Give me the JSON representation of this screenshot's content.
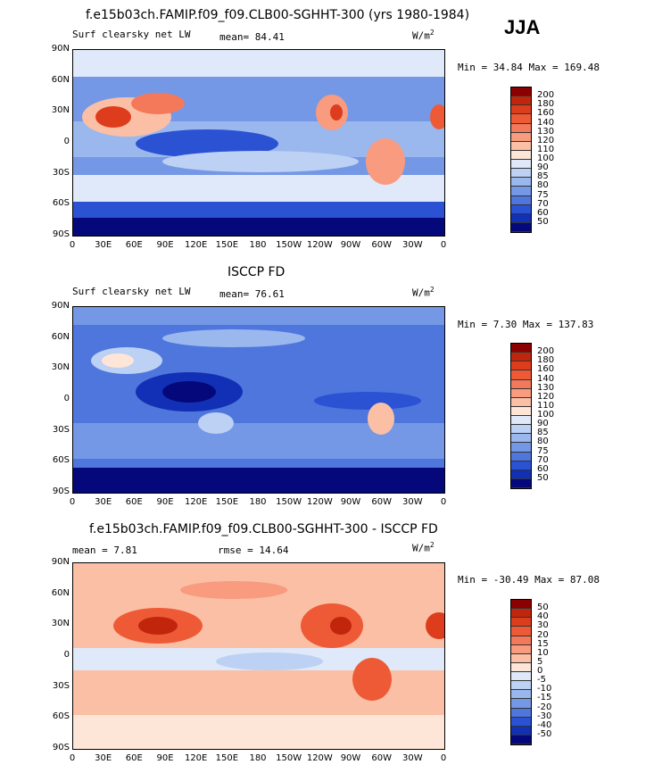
{
  "season": "JJA",
  "panels": [
    {
      "title": "f.e15b03ch.FAMIP.f09_f09.CLB00-SGHHT-300 (yrs 1980-1984)",
      "left_label": "Surf clearsky net LW",
      "mid_label": "mean=  84.41",
      "units": "W/m",
      "units_sup": "2",
      "minmax": "Min =  34.84 Max = 169.48"
    },
    {
      "title": "ISCCP FD",
      "left_label": "Surf clearsky net LW",
      "mid_label": "mean=  76.61",
      "units": "W/m",
      "units_sup": "2",
      "minmax": "Min =   7.30 Max = 137.83"
    },
    {
      "title": "f.e15b03ch.FAMIP.f09_f09.CLB00-SGHHT-300 - ISCCP FD",
      "left_label": "mean =   7.81",
      "mid_label": "rmse =  14.64",
      "units": "W/m",
      "units_sup": "2",
      "minmax": "Min = -30.49 Max =  87.08"
    }
  ],
  "axes": {
    "lat_ticks": [
      "90N",
      "60N",
      "30N",
      "0",
      "30S",
      "60S",
      "90S"
    ],
    "lon_ticks": [
      "0",
      "30E",
      "60E",
      "90E",
      "120E",
      "150E",
      "180",
      "150W",
      "120W",
      "90W",
      "60W",
      "30W",
      "0"
    ]
  },
  "colorbars": {
    "abs_levels": [
      "200",
      "180",
      "160",
      "140",
      "130",
      "120",
      "110",
      "100",
      "90",
      "85",
      "80",
      "75",
      "70",
      "60",
      "50"
    ],
    "abs_colors": [
      "#8b0000",
      "#c1250c",
      "#dd3d1d",
      "#ee5a36",
      "#f4795a",
      "#f89b7f",
      "#fbbfa5",
      "#fde6d8",
      "#dfe9f9",
      "#bcd1f3",
      "#9ab8ee",
      "#7598e6",
      "#4e76dd",
      "#2a52d2",
      "#1230b6",
      "#04087a"
    ],
    "diff_levels": [
      "50",
      "40",
      "30",
      "20",
      "15",
      "10",
      "5",
      "0",
      "-5",
      "-10",
      "-15",
      "-20",
      "-30",
      "-40",
      "-50"
    ],
    "diff_colors": [
      "#8b0000",
      "#c1250c",
      "#dd3d1d",
      "#ee5a36",
      "#f4795a",
      "#f89b7f",
      "#fbbfa5",
      "#fde6d8",
      "#dfe9f9",
      "#bcd1f3",
      "#9ab8ee",
      "#7598e6",
      "#4e76dd",
      "#2a52d2",
      "#1230b6",
      "#04087a"
    ]
  },
  "chart_data": [
    {
      "type": "heatmap",
      "title": "f.e15b03ch.FAMIP.f09_f09.CLB00-SGHHT-300 (yrs 1980-1984)",
      "variable": "Surf clearsky net LW",
      "units": "W/m2",
      "mean": 84.41,
      "min": 34.84,
      "max": 169.48,
      "xlim": [
        0,
        360
      ],
      "ylim": [
        -90,
        90
      ],
      "levels": [
        50,
        60,
        70,
        75,
        80,
        85,
        90,
        100,
        110,
        120,
        130,
        140,
        160,
        180,
        200
      ]
    },
    {
      "type": "heatmap",
      "title": "ISCCP FD",
      "variable": "Surf clearsky net LW",
      "units": "W/m2",
      "mean": 76.61,
      "min": 7.3,
      "max": 137.83,
      "xlim": [
        0,
        360
      ],
      "ylim": [
        -90,
        90
      ],
      "levels": [
        50,
        60,
        70,
        75,
        80,
        85,
        90,
        100,
        110,
        120,
        130,
        140,
        160,
        180,
        200
      ]
    },
    {
      "type": "heatmap",
      "title": "f.e15b03ch.FAMIP.f09_f09.CLB00-SGHHT-300 - ISCCP FD",
      "units": "W/m2",
      "mean": 7.81,
      "rmse": 14.64,
      "min": -30.49,
      "max": 87.08,
      "xlim": [
        0,
        360
      ],
      "ylim": [
        -90,
        90
      ],
      "levels": [
        -50,
        -40,
        -30,
        -20,
        -15,
        -10,
        -5,
        0,
        5,
        10,
        15,
        20,
        30,
        40,
        50
      ]
    }
  ]
}
